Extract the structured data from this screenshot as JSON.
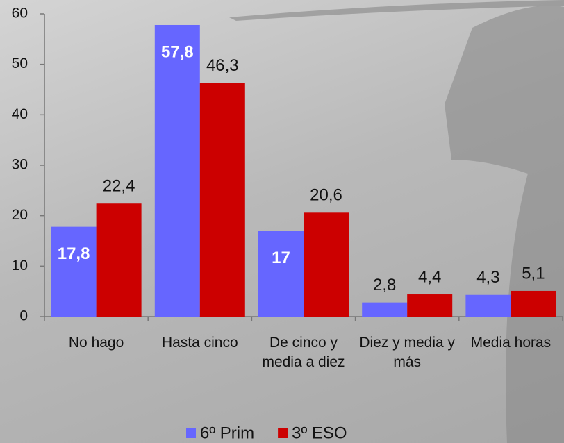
{
  "chart_data": {
    "type": "bar",
    "categories": [
      "No hago",
      "Hasta cinco",
      "De cinco y media a diez",
      "Diez y media y más",
      "Media horas"
    ],
    "series": [
      {
        "name": "6º Prim",
        "color": "#6666ff",
        "values": [
          17.8,
          57.8,
          17,
          2.8,
          4.3
        ],
        "value_labels": [
          "17,8",
          "57,8",
          "17",
          "2,8",
          "4,3"
        ]
      },
      {
        "name": "3º ESO",
        "color": "#cc0000",
        "values": [
          22.4,
          46.3,
          20.6,
          4.4,
          5.1
        ],
        "value_labels": [
          "22,4",
          "46,3",
          "20,6",
          "4,4",
          "5,1"
        ]
      }
    ],
    "ylim": [
      0,
      60
    ],
    "yticks": [
      0,
      10,
      20,
      30,
      40,
      50,
      60
    ],
    "grid": false,
    "legend": "bottom"
  }
}
